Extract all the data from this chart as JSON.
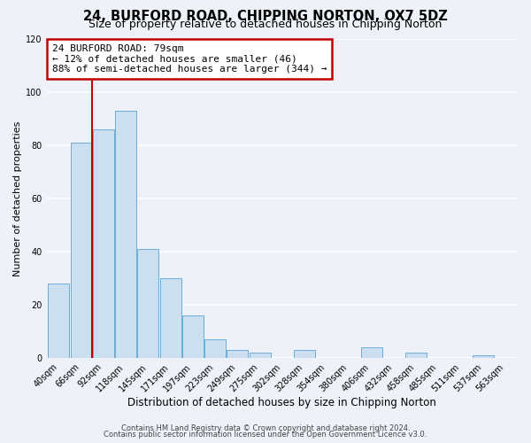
{
  "title": "24, BURFORD ROAD, CHIPPING NORTON, OX7 5DZ",
  "subtitle": "Size of property relative to detached houses in Chipping Norton",
  "xlabel": "Distribution of detached houses by size in Chipping Norton",
  "ylabel": "Number of detached properties",
  "bar_labels": [
    "40sqm",
    "66sqm",
    "92sqm",
    "118sqm",
    "145sqm",
    "171sqm",
    "197sqm",
    "223sqm",
    "249sqm",
    "275sqm",
    "302sqm",
    "328sqm",
    "354sqm",
    "380sqm",
    "406sqm",
    "432sqm",
    "458sqm",
    "485sqm",
    "511sqm",
    "537sqm",
    "563sqm"
  ],
  "bar_values": [
    28,
    81,
    86,
    93,
    41,
    30,
    16,
    7,
    3,
    2,
    0,
    3,
    0,
    0,
    4,
    0,
    2,
    0,
    0,
    1,
    0
  ],
  "bar_color": "#ccdff0",
  "bar_edge_color": "#6aaed6",
  "vline_color": "#c00000",
  "vline_bar_index": 2,
  "annotation_line1": "24 BURFORD ROAD: 79sqm",
  "annotation_line2": "← 12% of detached houses are smaller (46)",
  "annotation_line3": "88% of semi-detached houses are larger (344) →",
  "annotation_box_color": "#ffffff",
  "annotation_box_edge": "#c00000",
  "ylim": [
    0,
    120
  ],
  "yticks": [
    0,
    20,
    40,
    60,
    80,
    100,
    120
  ],
  "footer1": "Contains HM Land Registry data © Crown copyright and database right 2024.",
  "footer2": "Contains public sector information licensed under the Open Government Licence v3.0.",
  "background_color": "#eef2f8",
  "plot_bg_color": "#eef2f8",
  "grid_color": "#ffffff",
  "title_fontsize": 10.5,
  "subtitle_fontsize": 9,
  "xlabel_fontsize": 8.5,
  "ylabel_fontsize": 8,
  "tick_fontsize": 7,
  "annotation_fontsize": 8,
  "footer_fontsize": 6
}
